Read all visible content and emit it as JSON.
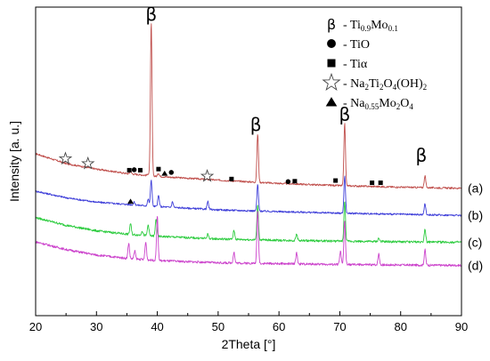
{
  "chart_data": {
    "type": "line",
    "xlabel": "2Theta [°]",
    "ylabel": "Intensity [a. u.]",
    "xlim": [
      20,
      90
    ],
    "x_ticks": [
      "20",
      "30",
      "40",
      "50",
      "60",
      "70",
      "80",
      "90"
    ],
    "grid": false,
    "legend_position": "top-right",
    "legend": [
      {
        "marker": "beta",
        "symbol": "β",
        "text": "- Ti0.9Mo0.1",
        "main": "Ti",
        "sub1": "0.9",
        "mid": "Mo",
        "sub2": "0.1"
      },
      {
        "marker": "circle",
        "text": "- TiO"
      },
      {
        "marker": "square",
        "text": "- Tiα"
      },
      {
        "marker": "star",
        "text": "- Na2Ti2O4(OH)2",
        "parts": [
          [
            "Na",
            ""
          ],
          [
            "2",
            "sub"
          ],
          [
            "Ti",
            ""
          ],
          [
            "2",
            "sub"
          ],
          [
            "O",
            ""
          ],
          [
            "4",
            "sub"
          ],
          [
            "(OH)",
            ""
          ],
          [
            "2",
            "sub"
          ]
        ]
      },
      {
        "marker": "triangle",
        "text": "- Na0.55Mo2O4",
        "parts": [
          [
            "Na",
            ""
          ],
          [
            "0.55",
            "sub"
          ],
          [
            "Mo",
            ""
          ],
          [
            "2",
            "sub"
          ],
          [
            "O",
            ""
          ],
          [
            "4",
            "sub"
          ]
        ]
      }
    ],
    "series": [
      {
        "name": "(a)",
        "color": "#c0504d",
        "baseline": {
          "x": [
            20,
            25,
            30,
            35,
            40,
            50,
            60,
            70,
            80,
            90
          ],
          "y": [
            0.735,
            0.69,
            0.665,
            0.645,
            0.632,
            0.615,
            0.6,
            0.59,
            0.583,
            0.578
          ]
        },
        "peaks": [
          {
            "x": 35.6,
            "h": 0.012
          },
          {
            "x": 38.5,
            "h": 0.008
          },
          {
            "x": 39.0,
            "h": 0.695
          },
          {
            "x": 40.2,
            "h": 0.015
          },
          {
            "x": 56.5,
            "h": 0.22
          },
          {
            "x": 70.8,
            "h": 0.285
          },
          {
            "x": 84.0,
            "h": 0.055
          }
        ],
        "noise": 0.004
      },
      {
        "name": "(b)",
        "color": "#3f3fd9",
        "baseline": {
          "x": [
            20,
            25,
            30,
            35,
            40,
            50,
            60,
            70,
            80,
            90
          ],
          "y": [
            0.565,
            0.535,
            0.515,
            0.505,
            0.495,
            0.48,
            0.472,
            0.465,
            0.46,
            0.455
          ]
        },
        "peaks": [
          {
            "x": 36.2,
            "h": 0.012
          },
          {
            "x": 38.5,
            "h": 0.03
          },
          {
            "x": 39.0,
            "h": 0.12
          },
          {
            "x": 40.2,
            "h": 0.05
          },
          {
            "x": 42.5,
            "h": 0.025
          },
          {
            "x": 48.3,
            "h": 0.035
          },
          {
            "x": 56.5,
            "h": 0.12
          },
          {
            "x": 70.8,
            "h": 0.17
          },
          {
            "x": 84.0,
            "h": 0.05
          }
        ],
        "noise": 0.004
      },
      {
        "name": "(c)",
        "color": "#2ecc40",
        "baseline": {
          "x": [
            20,
            25,
            30,
            35,
            40,
            50,
            60,
            70,
            80,
            90
          ],
          "y": [
            0.445,
            0.41,
            0.385,
            0.37,
            0.36,
            0.348,
            0.342,
            0.338,
            0.335,
            0.333
          ]
        },
        "peaks": [
          {
            "x": 35.6,
            "h": 0.05
          },
          {
            "x": 37.5,
            "h": 0.02
          },
          {
            "x": 38.5,
            "h": 0.05
          },
          {
            "x": 39.8,
            "h": 0.08
          },
          {
            "x": 48.3,
            "h": 0.02
          },
          {
            "x": 52.6,
            "h": 0.04
          },
          {
            "x": 56.5,
            "h": 0.16
          },
          {
            "x": 62.9,
            "h": 0.03
          },
          {
            "x": 70.8,
            "h": 0.18
          },
          {
            "x": 76.4,
            "h": 0.015
          },
          {
            "x": 84.0,
            "h": 0.06
          }
        ],
        "noise": 0.005
      },
      {
        "name": "(d)",
        "color": "#cc44cc",
        "baseline": {
          "x": [
            20,
            25,
            30,
            35,
            40,
            50,
            60,
            70,
            80,
            90
          ],
          "y": [
            0.335,
            0.3,
            0.275,
            0.26,
            0.25,
            0.24,
            0.236,
            0.232,
            0.23,
            0.228
          ]
        },
        "peaks": [
          {
            "x": 35.3,
            "h": 0.07
          },
          {
            "x": 36.3,
            "h": 0.035
          },
          {
            "x": 38.1,
            "h": 0.08
          },
          {
            "x": 40.0,
            "h": 0.2
          },
          {
            "x": 52.6,
            "h": 0.05
          },
          {
            "x": 56.5,
            "h": 0.24
          },
          {
            "x": 62.9,
            "h": 0.05
          },
          {
            "x": 70.1,
            "h": 0.06
          },
          {
            "x": 70.8,
            "h": 0.2
          },
          {
            "x": 76.4,
            "h": 0.05
          },
          {
            "x": 84.0,
            "h": 0.07
          }
        ],
        "noise": 0.005
      }
    ],
    "peak_labels": [
      {
        "text": "β",
        "x": 39.0,
        "y": 1.34
      },
      {
        "text": "β",
        "x": 56.2,
        "y": 0.84
      },
      {
        "text": "β",
        "x": 70.8,
        "y": 0.885
      },
      {
        "text": "β",
        "x": 83.4,
        "y": 0.7
      }
    ],
    "phase_markers": [
      {
        "marker": "star",
        "x": 24.9,
        "y": 0.712
      },
      {
        "marker": "star",
        "x": 28.6,
        "y": 0.69
      },
      {
        "marker": "star",
        "x": 48.2,
        "y": 0.633
      },
      {
        "marker": "square",
        "x": 35.4,
        "y": 0.66
      },
      {
        "marker": "circle",
        "x": 36.2,
        "y": 0.662
      },
      {
        "marker": "square",
        "x": 37.2,
        "y": 0.66
      },
      {
        "marker": "square",
        "x": 40.2,
        "y": 0.665
      },
      {
        "marker": "triangle",
        "x": 41.2,
        "y": 0.645
      },
      {
        "marker": "circle",
        "x": 42.3,
        "y": 0.65
      },
      {
        "marker": "square",
        "x": 52.2,
        "y": 0.62
      },
      {
        "marker": "circle",
        "x": 61.5,
        "y": 0.608
      },
      {
        "marker": "square",
        "x": 62.6,
        "y": 0.61
      },
      {
        "marker": "square",
        "x": 69.3,
        "y": 0.613
      },
      {
        "marker": "square",
        "x": 75.3,
        "y": 0.603
      },
      {
        "marker": "square",
        "x": 76.7,
        "y": 0.603
      },
      {
        "marker": "triangle",
        "x": 35.6,
        "y": 0.518
      }
    ]
  }
}
